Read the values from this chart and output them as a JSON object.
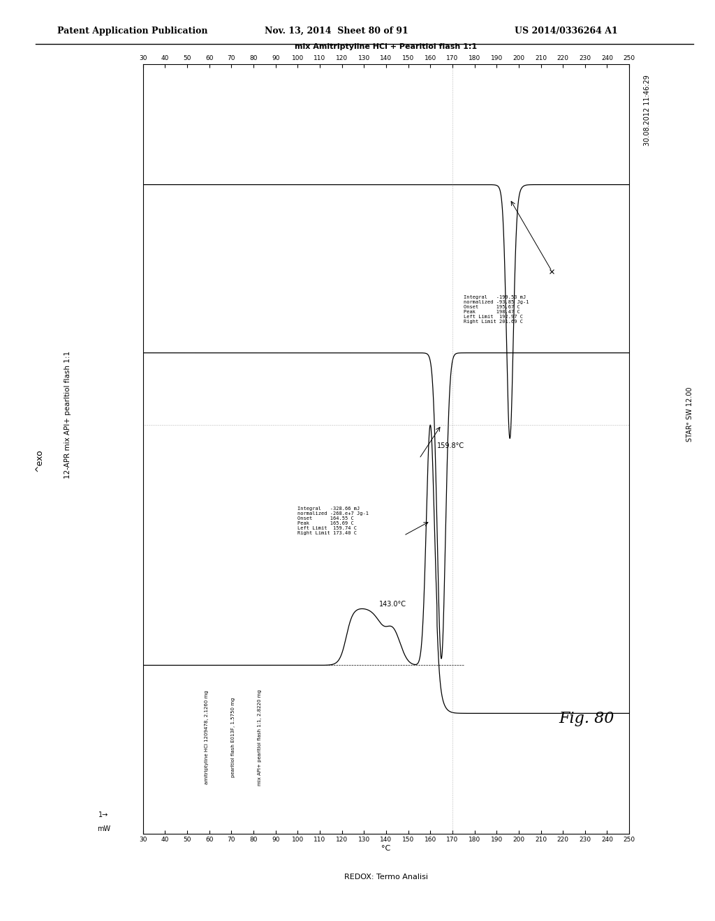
{
  "title_top_left": "Patent Application Publication",
  "title_top_center": "Nov. 13, 2014  Sheet 80 of 91",
  "title_top_right": "US 2014/0336264 A1",
  "fig_label": "Fig. 80",
  "chart_title_rotated": "12-APR mix API+ pearltiol flash 1:1",
  "subtitle": "mix Amitriptyline HCl + Pearltiol flash 1:1",
  "date_label": "30.08.2012 11:46:29",
  "right_label": "STAR e SW 12.00",
  "bottom_label": "REDOX: Termo Analisi",
  "ylabel": "^exo",
  "xlabel_unit": "C",
  "x_min": 30,
  "x_max": 250,
  "y_min": -12,
  "y_max": 4,
  "sample_labels": [
    "amitriptyline HCl 1209478, 2.1260 mg",
    "pearltiol flash E013F, 1.5750 mg",
    "mix API+ pearltiol flash 1:1, 2.8220 mg"
  ],
  "annotation1_lines": [
    "Integral   -328.66 mJ",
    "normalized -268.e+7 Jg-1",
    "Onset      164.55 C",
    "Peak       165.69 C",
    "Left Limit  159.74 C",
    "Right Limit 173.40 C"
  ],
  "annotation2_lines": [
    "Integral   -199.53 mJ",
    "normalized -93.85 Jg-1",
    "Onset      195.67 C",
    "Peak       198.47 C",
    "Left Limit  192.97 C",
    "Right Limit 201.69 C"
  ],
  "temp_label1": "143.0°C",
  "temp_label2": "159.8°C",
  "background_color": "#ffffff",
  "line_color": "#000000"
}
